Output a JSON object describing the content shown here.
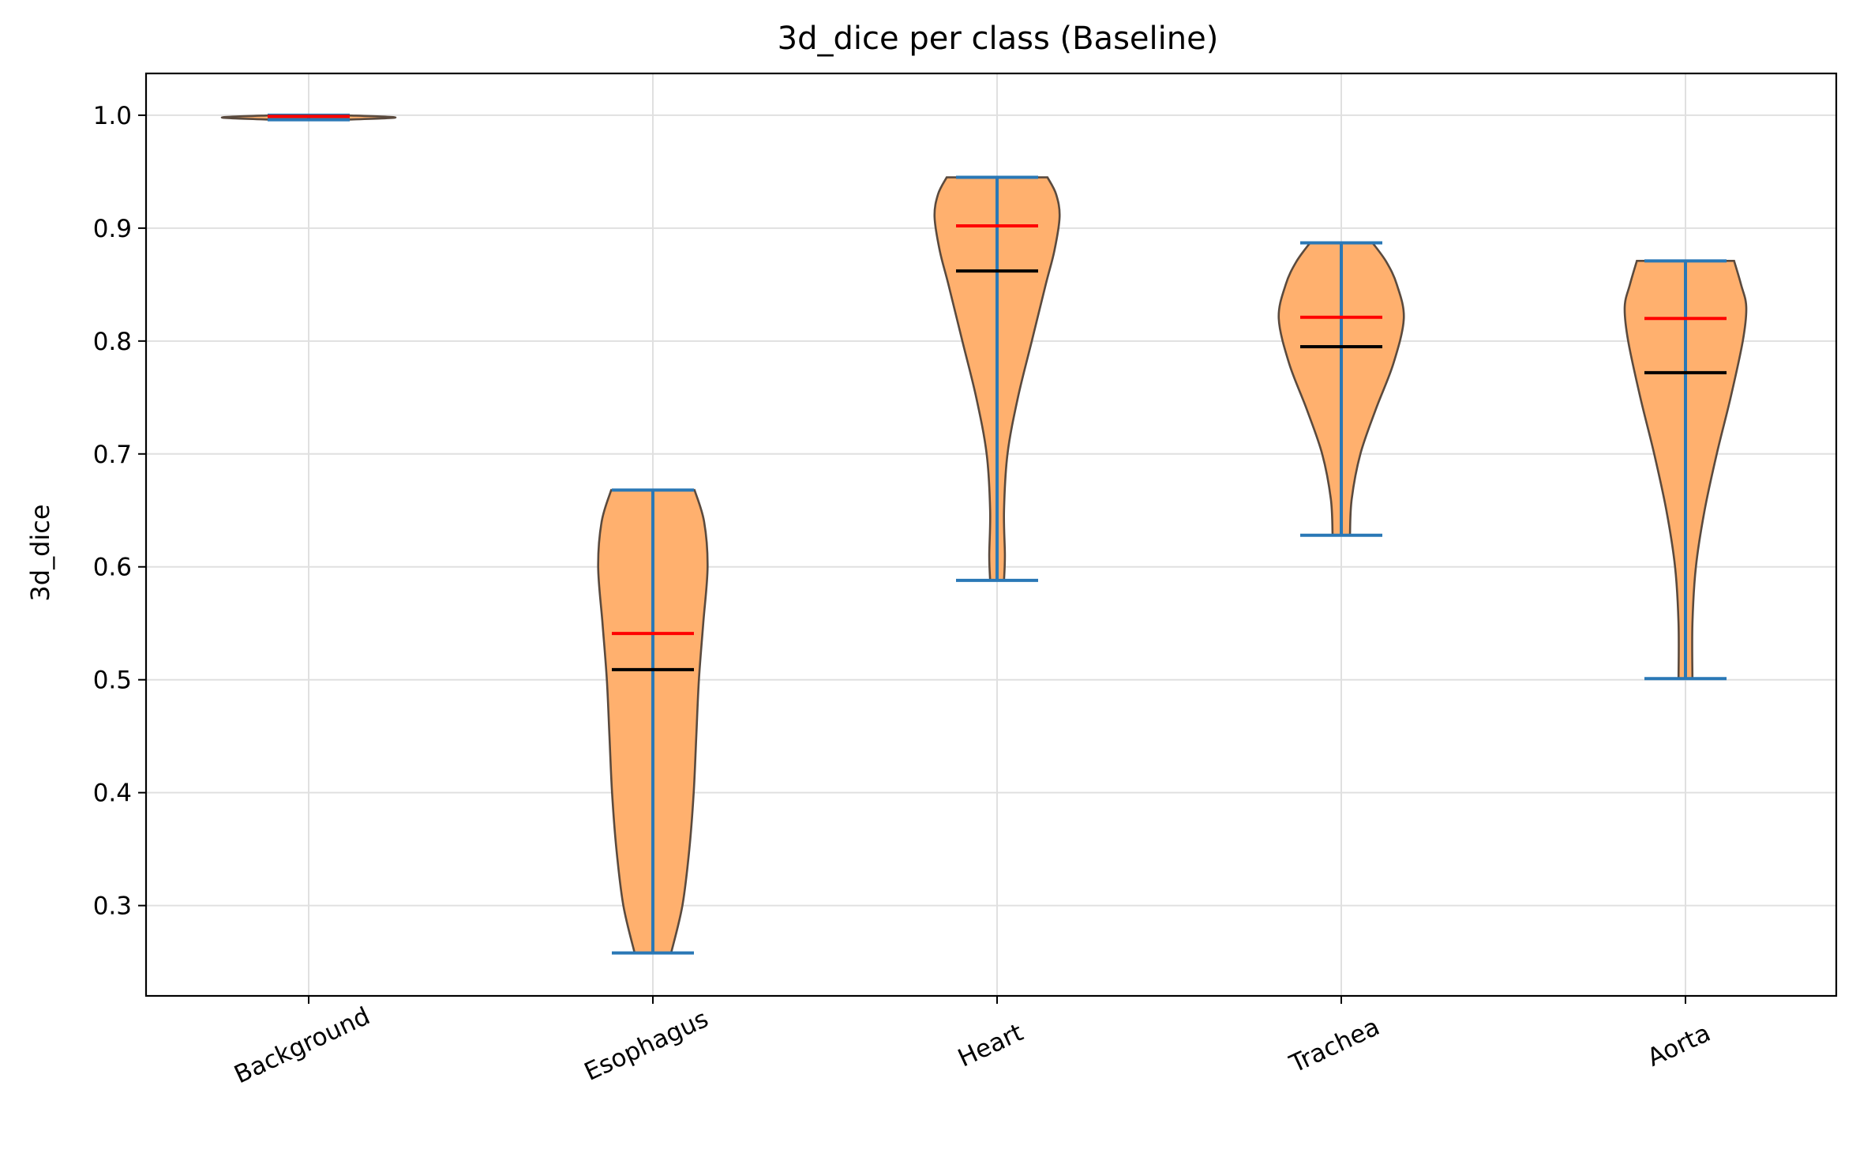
{
  "chart_data": {
    "type": "violin",
    "title": "3d_dice per class (Baseline)",
    "xlabel": "",
    "ylabel": "3d_dice",
    "categories": [
      "Background",
      "Esophagus",
      "Heart",
      "Trachea",
      "Aorta"
    ],
    "ylim": [
      0.22,
      1.037
    ],
    "yticks": [
      0.3,
      0.4,
      0.5,
      0.6,
      0.7,
      0.8,
      0.9,
      1.0
    ],
    "ytick_labels": [
      "0.3",
      "0.4",
      "0.5",
      "0.6",
      "0.7",
      "0.8",
      "0.9",
      "1.0"
    ],
    "grid": true,
    "colors": {
      "violin_fill": "#ffb06e",
      "violin_edge": "#5a4a3e",
      "whisker": "#2a78b6",
      "mean": "#ff0000",
      "median": "#000000"
    },
    "series": [
      {
        "category": "Background",
        "min": 0.996,
        "max": 1.0,
        "mean": 0.999,
        "median": 0.999,
        "density": [
          [
            0.996,
            0.4
          ],
          [
            0.998,
            1.0
          ],
          [
            1.0,
            0.4
          ]
        ]
      },
      {
        "category": "Esophagus",
        "min": 0.258,
        "max": 0.668,
        "mean": 0.541,
        "median": 0.509,
        "density": [
          [
            0.258,
            0.21
          ],
          [
            0.3,
            0.34
          ],
          [
            0.35,
            0.42
          ],
          [
            0.4,
            0.47
          ],
          [
            0.45,
            0.5
          ],
          [
            0.5,
            0.53
          ],
          [
            0.55,
            0.58
          ],
          [
            0.6,
            0.63
          ],
          [
            0.64,
            0.59
          ],
          [
            0.668,
            0.48
          ]
        ]
      },
      {
        "category": "Heart",
        "min": 0.588,
        "max": 0.945,
        "mean": 0.902,
        "median": 0.862,
        "density": [
          [
            0.588,
            0.08
          ],
          [
            0.61,
            0.09
          ],
          [
            0.65,
            0.08
          ],
          [
            0.7,
            0.12
          ],
          [
            0.75,
            0.24
          ],
          [
            0.8,
            0.4
          ],
          [
            0.85,
            0.56
          ],
          [
            0.88,
            0.66
          ],
          [
            0.91,
            0.72
          ],
          [
            0.93,
            0.68
          ],
          [
            0.945,
            0.58
          ]
        ]
      },
      {
        "category": "Trachea",
        "min": 0.628,
        "max": 0.887,
        "mean": 0.821,
        "median": 0.795,
        "density": [
          [
            0.628,
            0.1
          ],
          [
            0.66,
            0.12
          ],
          [
            0.7,
            0.22
          ],
          [
            0.74,
            0.4
          ],
          [
            0.78,
            0.6
          ],
          [
            0.82,
            0.72
          ],
          [
            0.85,
            0.64
          ],
          [
            0.87,
            0.52
          ],
          [
            0.887,
            0.36
          ]
        ]
      },
      {
        "category": "Aorta",
        "min": 0.501,
        "max": 0.871,
        "mean": 0.82,
        "median": 0.772,
        "density": [
          [
            0.501,
            0.08
          ],
          [
            0.55,
            0.08
          ],
          [
            0.6,
            0.12
          ],
          [
            0.65,
            0.22
          ],
          [
            0.7,
            0.36
          ],
          [
            0.75,
            0.52
          ],
          [
            0.8,
            0.66
          ],
          [
            0.83,
            0.7
          ],
          [
            0.85,
            0.64
          ],
          [
            0.871,
            0.56
          ]
        ]
      }
    ]
  }
}
